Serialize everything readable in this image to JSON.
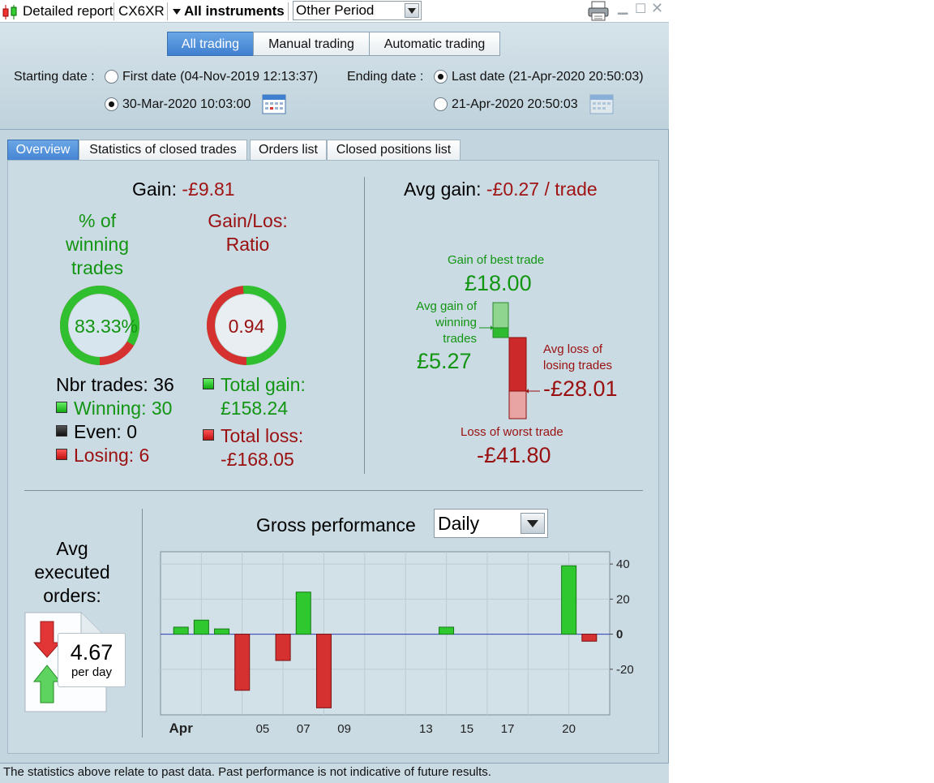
{
  "titlebar": {
    "report_label": "Detailed report",
    "account": "CX6XR",
    "instruments": "All instruments",
    "period": "Other Period"
  },
  "trading_mode": {
    "options": [
      "All trading",
      "Manual trading",
      "Automatic trading"
    ],
    "selected": "All trading"
  },
  "dates": {
    "starting_label": "Starting date :",
    "first_date": "First date (04-Nov-2019 12:13:37)",
    "custom_start": "30-Mar-2020 10:03:00",
    "ending_label": "Ending date :",
    "last_date": "Last date (21-Apr-2020 20:50:03)",
    "custom_end": "21-Apr-2020 20:50:03"
  },
  "tabs": [
    "Overview",
    "Statistics of closed trades",
    "Orders list",
    "Closed positions list"
  ],
  "overview": {
    "gain_label": "Gain:",
    "gain_value": "-£9.81",
    "winning_pct_title_1": "% of",
    "winning_pct_title_2": "winning",
    "winning_pct_title_3": "trades",
    "winning_pct_value": "83.33%",
    "winning_pct": 0.8333,
    "ratio_title_1": "Gain/Los:",
    "ratio_title_2": "Ratio",
    "ratio_value": "0.94",
    "ratio_fraction": 0.485,
    "nbr_trades": "Nbr trades: 36",
    "winning": "Winning: 30",
    "even": "Even: 0",
    "losing": "Losing: 6",
    "total_gain_label": "Total gain:",
    "total_gain_value": "£158.24",
    "total_loss_label": "Total loss:",
    "total_loss_value": "-£168.05",
    "avg_gain_label": "Avg gain:",
    "avg_gain_value": "-£0.27 / trade",
    "best_trade_label": "Gain of best trade",
    "best_trade_value": "£18.00",
    "avg_win_label_1": "Avg gain of",
    "avg_win_label_2": "winning",
    "avg_win_label_3": "trades",
    "avg_win_value": "£5.27",
    "avg_loss_label_1": "Avg loss of",
    "avg_loss_label_2": "losing trades",
    "avg_loss_value": "-£28.01",
    "worst_trade_label": "Loss of worst trade",
    "worst_trade_value": "-£41.80",
    "avg_orders_1": "Avg",
    "avg_orders_2": "executed",
    "avg_orders_3": "orders:",
    "avg_orders_value": "4.67",
    "avg_orders_unit": "per day"
  },
  "performance": {
    "title": "Gross performance",
    "granularity": "Daily"
  },
  "colors": {
    "gain": "#129512",
    "loss": "#a01414",
    "accent": "#4685d4"
  },
  "chart_data": {
    "type": "bar",
    "x": [
      "Apr 01",
      "Apr 02",
      "Apr 03",
      "Apr 04",
      "Apr 06",
      "Apr 07",
      "Apr 08",
      "Apr 14",
      "Apr 20",
      "Apr 21"
    ],
    "values": [
      4,
      8,
      3,
      -32,
      -15,
      24,
      -42,
      4,
      39,
      -4
    ],
    "x_tick_labels": [
      "Apr",
      "05",
      "07",
      "09",
      "13",
      "15",
      "17",
      "20"
    ],
    "y_ticks": [
      40,
      20,
      0,
      -20
    ],
    "ylim": [
      -46,
      47
    ],
    "grid": true,
    "title": "",
    "xlabel": "",
    "ylabel": ""
  },
  "status": "The statistics above relate to past data. Past performance is not indicative of future results."
}
